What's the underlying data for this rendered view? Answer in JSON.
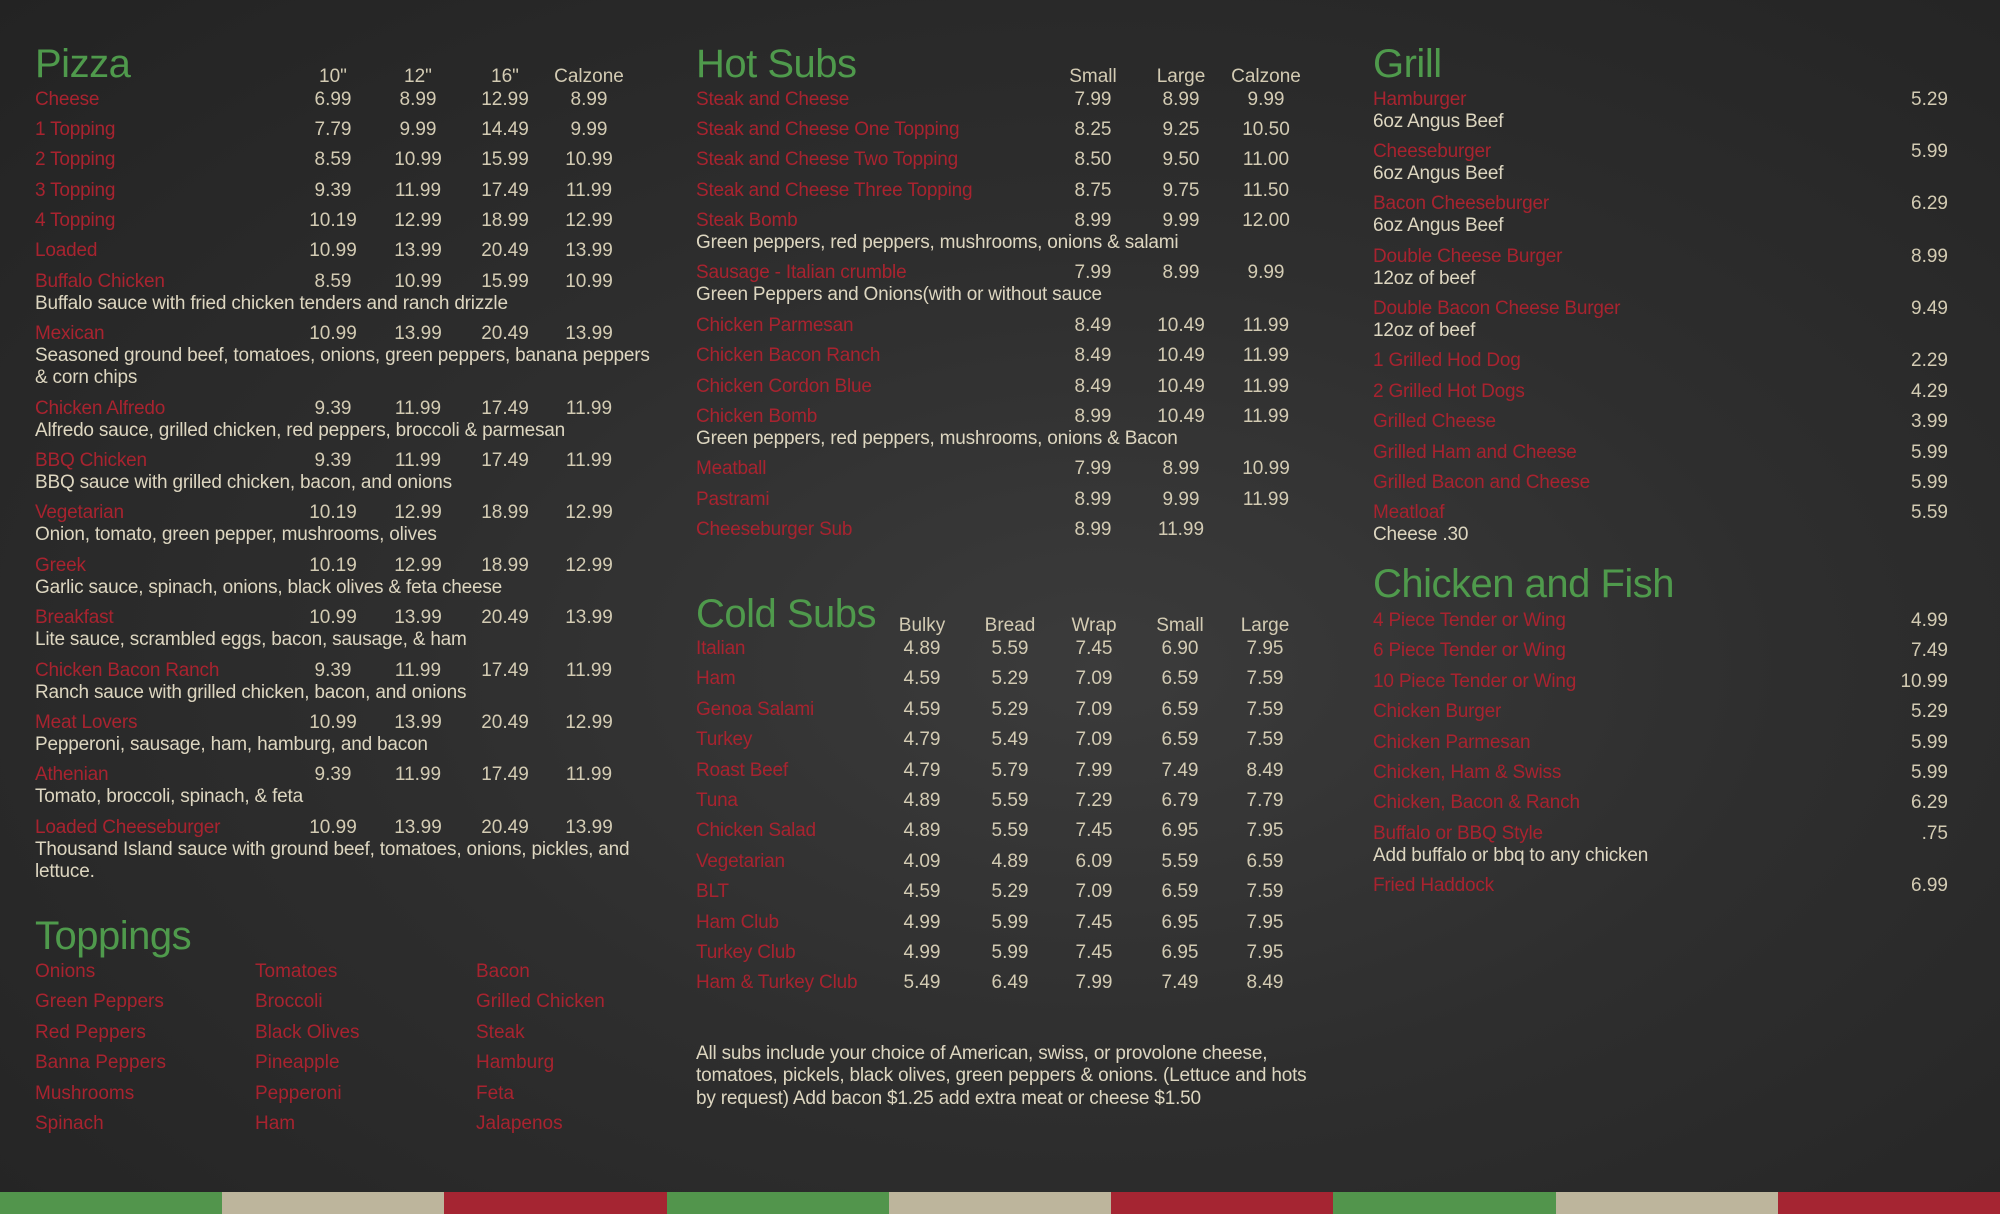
{
  "colors": {
    "heading": "#4f9a4c",
    "item": "#a8232f",
    "price": "#d3cbb3",
    "stripe": [
      "#52954c",
      "#bdb59c",
      "#a52532"
    ]
  },
  "pizza": {
    "title": "Pizza",
    "columns": [
      "10\"",
      "12\"",
      "16\"",
      "Calzone"
    ],
    "items": [
      {
        "name": "Cheese",
        "prices": [
          "6.99",
          "8.99",
          "12.99",
          "8.99"
        ]
      },
      {
        "name": "1 Topping",
        "prices": [
          "7.79",
          "9.99",
          "14.49",
          "9.99"
        ]
      },
      {
        "name": "2 Topping",
        "prices": [
          "8.59",
          "10.99",
          "15.99",
          "10.99"
        ]
      },
      {
        "name": "3 Topping",
        "prices": [
          "9.39",
          "11.99",
          "17.49",
          "11.99"
        ]
      },
      {
        "name": "4 Topping",
        "prices": [
          "10.19",
          "12.99",
          "18.99",
          "12.99"
        ]
      },
      {
        "name": "Loaded",
        "prices": [
          "10.99",
          "13.99",
          "20.49",
          "13.99"
        ]
      },
      {
        "name": "Buffalo Chicken",
        "prices": [
          "8.59",
          "10.99",
          "15.99",
          "10.99"
        ],
        "desc": "Buffalo sauce with fried chicken tenders and ranch drizzle"
      },
      {
        "name": "Mexican",
        "prices": [
          "10.99",
          "13.99",
          "20.49",
          "13.99"
        ],
        "desc": "Seasoned ground beef, tomatoes, onions, green peppers, banana peppers & corn chips"
      },
      {
        "name": "Chicken Alfredo",
        "prices": [
          "9.39",
          "11.99",
          "17.49",
          "11.99"
        ],
        "desc": "Alfredo sauce, grilled chicken, red peppers, broccoli & parmesan"
      },
      {
        "name": "BBQ Chicken",
        "prices": [
          "9.39",
          "11.99",
          "17.49",
          "11.99"
        ],
        "desc": "BBQ sauce with grilled chicken, bacon, and onions"
      },
      {
        "name": "Vegetarian",
        "prices": [
          "10.19",
          "12.99",
          "18.99",
          "12.99"
        ],
        "desc": "Onion, tomato, green pepper, mushrooms, olives"
      },
      {
        "name": "Greek",
        "prices": [
          "10.19",
          "12.99",
          "18.99",
          "12.99"
        ],
        "desc": "Garlic sauce, spinach, onions, black olives & feta cheese"
      },
      {
        "name": "Breakfast",
        "prices": [
          "10.99",
          "13.99",
          "20.49",
          "13.99"
        ],
        "desc": "Lite sauce, scrambled eggs, bacon, sausage, & ham"
      },
      {
        "name": "Chicken Bacon Ranch",
        "prices": [
          "9.39",
          "11.99",
          "17.49",
          "11.99"
        ],
        "desc": "Ranch sauce with grilled chicken, bacon, and onions"
      },
      {
        "name": "Meat Lovers",
        "prices": [
          "10.99",
          "13.99",
          "20.49",
          "12.99"
        ],
        "desc": "Pepperoni, sausage, ham, hamburg, and bacon"
      },
      {
        "name": "Athenian",
        "prices": [
          "9.39",
          "11.99",
          "17.49",
          "11.99"
        ],
        "desc": "Tomato, broccoli, spinach, & feta"
      },
      {
        "name": "Loaded Cheeseburger",
        "prices": [
          "10.99",
          "13.99",
          "20.49",
          "13.99"
        ],
        "desc": "Thousand Island sauce with ground beef, tomatoes, onions, pickles, and lettuce."
      }
    ]
  },
  "toppings": {
    "title": "Toppings",
    "columns": [
      [
        "Onions",
        "Green Peppers",
        "Red Peppers",
        "Banna Peppers",
        "Mushrooms",
        "Spinach"
      ],
      [
        "Tomatoes",
        "Broccoli",
        "Black Olives",
        "Pineapple",
        "Pepperoni",
        "Ham"
      ],
      [
        "Bacon",
        "Grilled Chicken",
        "Steak",
        "Hamburg",
        "Feta",
        "Jalapenos"
      ]
    ]
  },
  "hot_subs": {
    "title": "Hot Subs",
    "columns": [
      "Small",
      "Large",
      "Calzone"
    ],
    "items": [
      {
        "name": "Steak and Cheese",
        "prices": [
          "7.99",
          "8.99",
          "9.99"
        ]
      },
      {
        "name": "Steak and Cheese One Topping",
        "prices": [
          "8.25",
          "9.25",
          "10.50"
        ]
      },
      {
        "name": "Steak and Cheese Two Topping",
        "prices": [
          "8.50",
          "9.50",
          "11.00"
        ]
      },
      {
        "name": "Steak and Cheese Three Topping",
        "prices": [
          "8.75",
          "9.75",
          "11.50"
        ]
      },
      {
        "name": "Steak Bomb",
        "prices": [
          "8.99",
          "9.99",
          "12.00"
        ],
        "desc": "Green peppers, red peppers, mushrooms, onions & salami"
      },
      {
        "name": "Sausage - Italian crumble",
        "prices": [
          "7.99",
          "8.99",
          "9.99"
        ],
        "desc": "Green Peppers and Onions(with or without sauce"
      },
      {
        "name": "Chicken Parmesan",
        "prices": [
          "8.49",
          "10.49",
          "11.99"
        ]
      },
      {
        "name": "Chicken Bacon Ranch",
        "prices": [
          "8.49",
          "10.49",
          "11.99"
        ]
      },
      {
        "name": "Chicken Cordon Blue",
        "prices": [
          "8.49",
          "10.49",
          "11.99"
        ]
      },
      {
        "name": "Chicken Bomb",
        "prices": [
          "8.99",
          "10.49",
          "11.99"
        ],
        "desc": "Green peppers, red peppers, mushrooms, onions & Bacon"
      },
      {
        "name": "Meatball",
        "prices": [
          "7.99",
          "8.99",
          "10.99"
        ]
      },
      {
        "name": "Pastrami",
        "prices": [
          "8.99",
          "9.99",
          "11.99"
        ]
      },
      {
        "name": "Cheeseburger Sub",
        "prices": [
          "8.99",
          "11.99",
          ""
        ]
      }
    ]
  },
  "cold_subs": {
    "title": "Cold Subs",
    "columns": [
      "Bulky",
      "Bread",
      "Wrap",
      "Small",
      "Large"
    ],
    "items": [
      {
        "name": "Italian",
        "prices": [
          "4.89",
          "5.59",
          "7.45",
          "6.90",
          "7.95"
        ]
      },
      {
        "name": "Ham",
        "prices": [
          "4.59",
          "5.29",
          "7.09",
          "6.59",
          "7.59"
        ]
      },
      {
        "name": "Genoa Salami",
        "prices": [
          "4.59",
          "5.29",
          "7.09",
          "6.59",
          "7.59"
        ]
      },
      {
        "name": "Turkey",
        "prices": [
          "4.79",
          "5.49",
          "7.09",
          "6.59",
          "7.59"
        ]
      },
      {
        "name": "Roast Beef",
        "prices": [
          "4.79",
          "5.79",
          "7.99",
          "7.49",
          "8.49"
        ]
      },
      {
        "name": "Tuna",
        "prices": [
          "4.89",
          "5.59",
          "7.29",
          "6.79",
          "7.79"
        ]
      },
      {
        "name": "Chicken Salad",
        "prices": [
          "4.89",
          "5.59",
          "7.45",
          "6.95",
          "7.95"
        ]
      },
      {
        "name": "Vegetarian",
        "prices": [
          "4.09",
          "4.89",
          "6.09",
          "5.59",
          "6.59"
        ]
      },
      {
        "name": "BLT",
        "prices": [
          "4.59",
          "5.29",
          "7.09",
          "6.59",
          "7.59"
        ]
      },
      {
        "name": "Ham Club",
        "prices": [
          "4.99",
          "5.99",
          "7.45",
          "6.95",
          "7.95"
        ]
      },
      {
        "name": "Turkey Club",
        "prices": [
          "4.99",
          "5.99",
          "7.45",
          "6.95",
          "7.95"
        ]
      },
      {
        "name": "Ham & Turkey Club",
        "prices": [
          "5.49",
          "6.49",
          "7.99",
          "7.49",
          "8.49"
        ]
      }
    ],
    "note": "All subs include your choice of American, swiss, or provolone cheese, tomatoes, pickels, black olives, green peppers & onions. (Lettuce and hots by request) Add bacon $1.25 add extra meat or cheese $1.50"
  },
  "grill": {
    "title": "Grill",
    "items": [
      {
        "name": "Hamburger",
        "price": "5.29",
        "desc": "6oz Angus Beef"
      },
      {
        "name": "Cheeseburger",
        "price": "5.99",
        "desc": "6oz Angus Beef"
      },
      {
        "name": "Bacon Cheeseburger",
        "price": "6.29",
        "desc": "6oz Angus Beef"
      },
      {
        "name": "Double Cheese Burger",
        "price": "8.99",
        "desc": "12oz of beef"
      },
      {
        "name": "Double Bacon Cheese Burger",
        "price": "9.49",
        "desc": "12oz of beef"
      },
      {
        "name": "1 Grilled Hod Dog",
        "price": "2.29"
      },
      {
        "name": "2 Grilled Hot Dogs",
        "price": "4.29"
      },
      {
        "name": "Grilled Cheese",
        "price": "3.99"
      },
      {
        "name": "Grilled Ham and Cheese",
        "price": "5.99"
      },
      {
        "name": "Grilled Bacon and Cheese",
        "price": "5.99"
      },
      {
        "name": "Meatloaf",
        "price": "5.59",
        "desc": "Cheese .30"
      }
    ]
  },
  "chicken_fish": {
    "title": "Chicken and Fish",
    "items": [
      {
        "name": "4 Piece Tender or Wing",
        "price": "4.99"
      },
      {
        "name": "6 Piece Tender or Wing",
        "price": "7.49"
      },
      {
        "name": "10 Piece Tender or Wing",
        "price": "10.99"
      },
      {
        "name": "Chicken Burger",
        "price": "5.29"
      },
      {
        "name": "Chicken Parmesan",
        "price": "5.99"
      },
      {
        "name": "Chicken, Ham & Swiss",
        "price": "5.99"
      },
      {
        "name": "Chicken, Bacon & Ranch",
        "price": "6.29"
      },
      {
        "name": "Buffalo or BBQ Style",
        "price": ".75",
        "desc": "Add buffalo or bbq to any chicken"
      },
      {
        "name": "Fried Haddock",
        "price": "6.99"
      }
    ]
  }
}
